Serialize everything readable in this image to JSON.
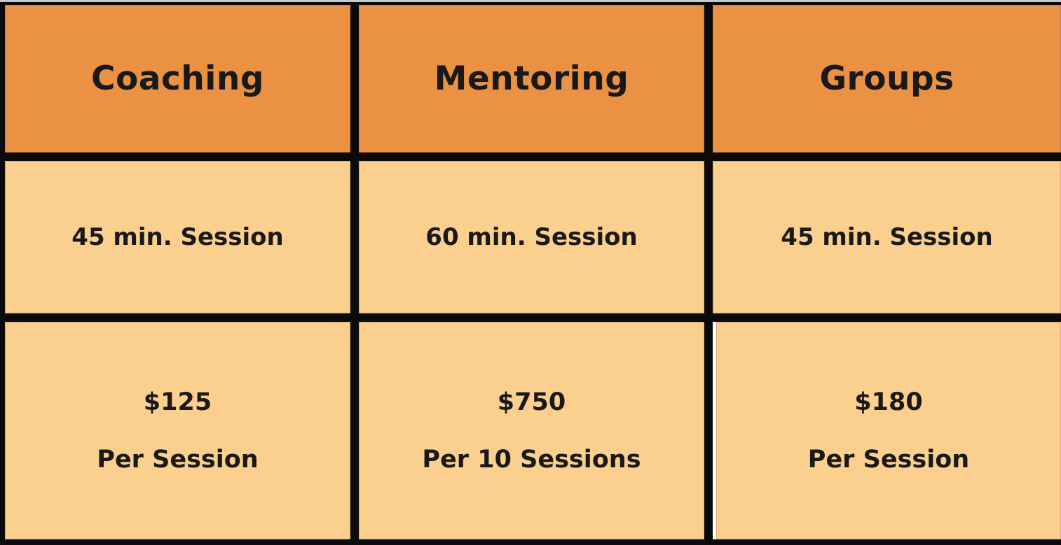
{
  "pricing_table": {
    "columns": [
      {
        "header": "Coaching",
        "duration": "45 min. Session",
        "price": "$125",
        "unit": "Per Session"
      },
      {
        "header": "Mentoring",
        "duration": "60 min. Session",
        "price": "$750",
        "unit": "Per 10 Sessions"
      },
      {
        "header": "Groups",
        "duration": "45 min. Session",
        "price": "$180",
        "unit": "Per Session"
      }
    ]
  },
  "chart_data": {
    "type": "table",
    "title": "Pricing table",
    "columns": [
      "Coaching",
      "Mentoring",
      "Groups"
    ],
    "rows": [
      [
        "45 min. Session",
        "60 min. Session",
        "45 min. Session"
      ],
      [
        "$125 Per Session",
        "$750 Per 10 Sessions",
        "$180 Per Session"
      ]
    ],
    "prices_numeric": [
      125,
      750,
      180
    ],
    "layout": "3 columns x 3 rows, black grid gaps, header row darker orange"
  },
  "colors": {
    "header_bg": "#EB9143",
    "cell_bg": "#FBCF8D",
    "background_gap": "#0B0B0B",
    "top_line": "#C9C9C9",
    "text": "#191919",
    "bottom_right_cell_left_border": "#FFFFFF"
  }
}
